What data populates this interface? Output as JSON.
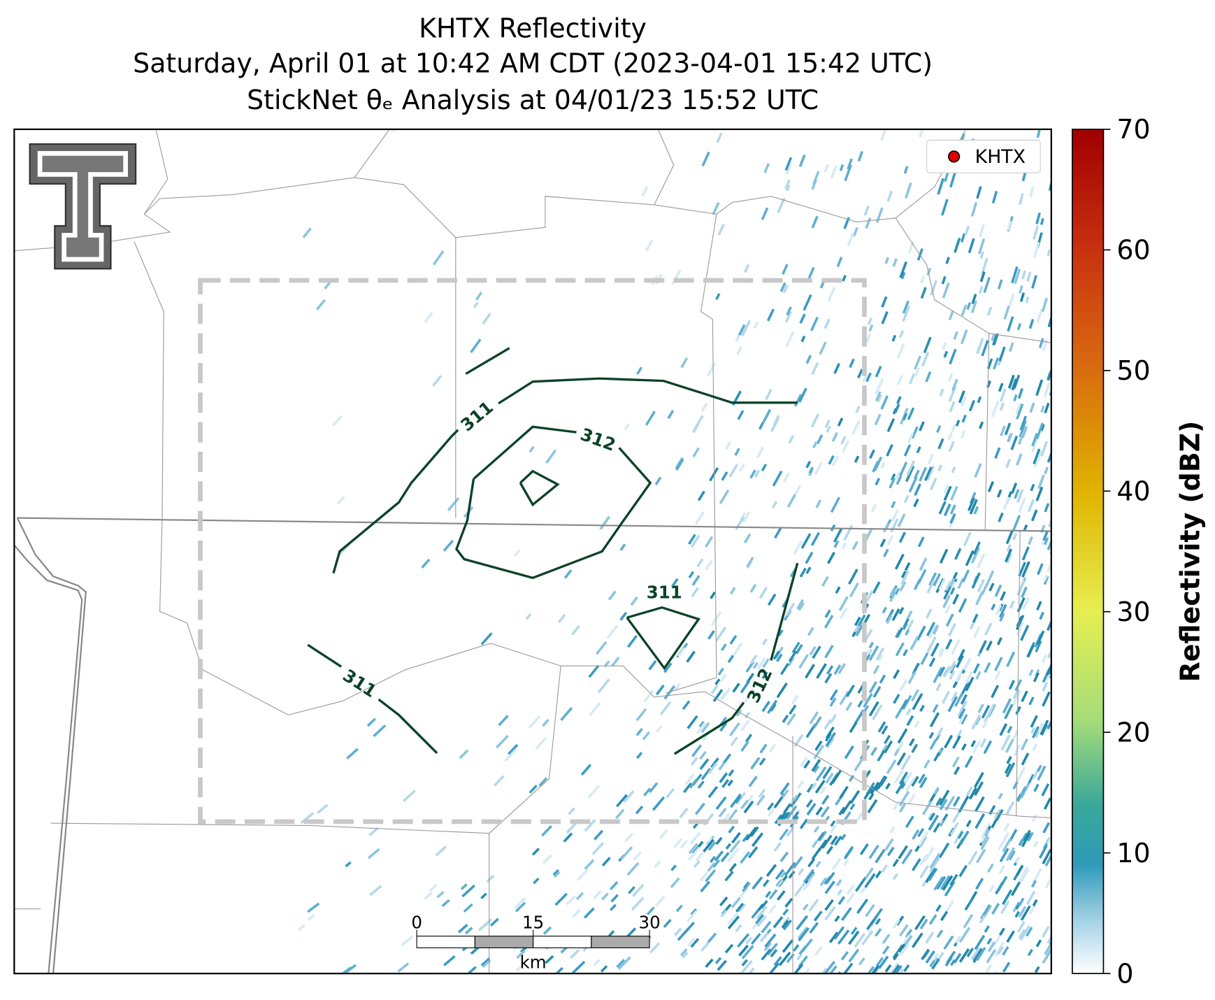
{
  "title": [
    "KHTX Reflectivity",
    "Saturday, April 01 at 10:42 AM CDT (2023-04-01 15:42 UTC)",
    "StickNet θₑ Analysis at 04/01/23 15:52 UTC"
  ],
  "legend": {
    "label": "KHTX",
    "color": "#e00000"
  },
  "colorbar": {
    "label": "Reflectivity (dBZ)",
    "lim": [
      0,
      70
    ],
    "ticks": [
      0,
      10,
      20,
      30,
      40,
      50,
      60,
      70
    ]
  },
  "contours": [
    311,
    312,
    311,
    311,
    312
  ],
  "scale_bar": {
    "ticks": [
      0,
      15,
      30
    ],
    "unit": "km"
  }
}
